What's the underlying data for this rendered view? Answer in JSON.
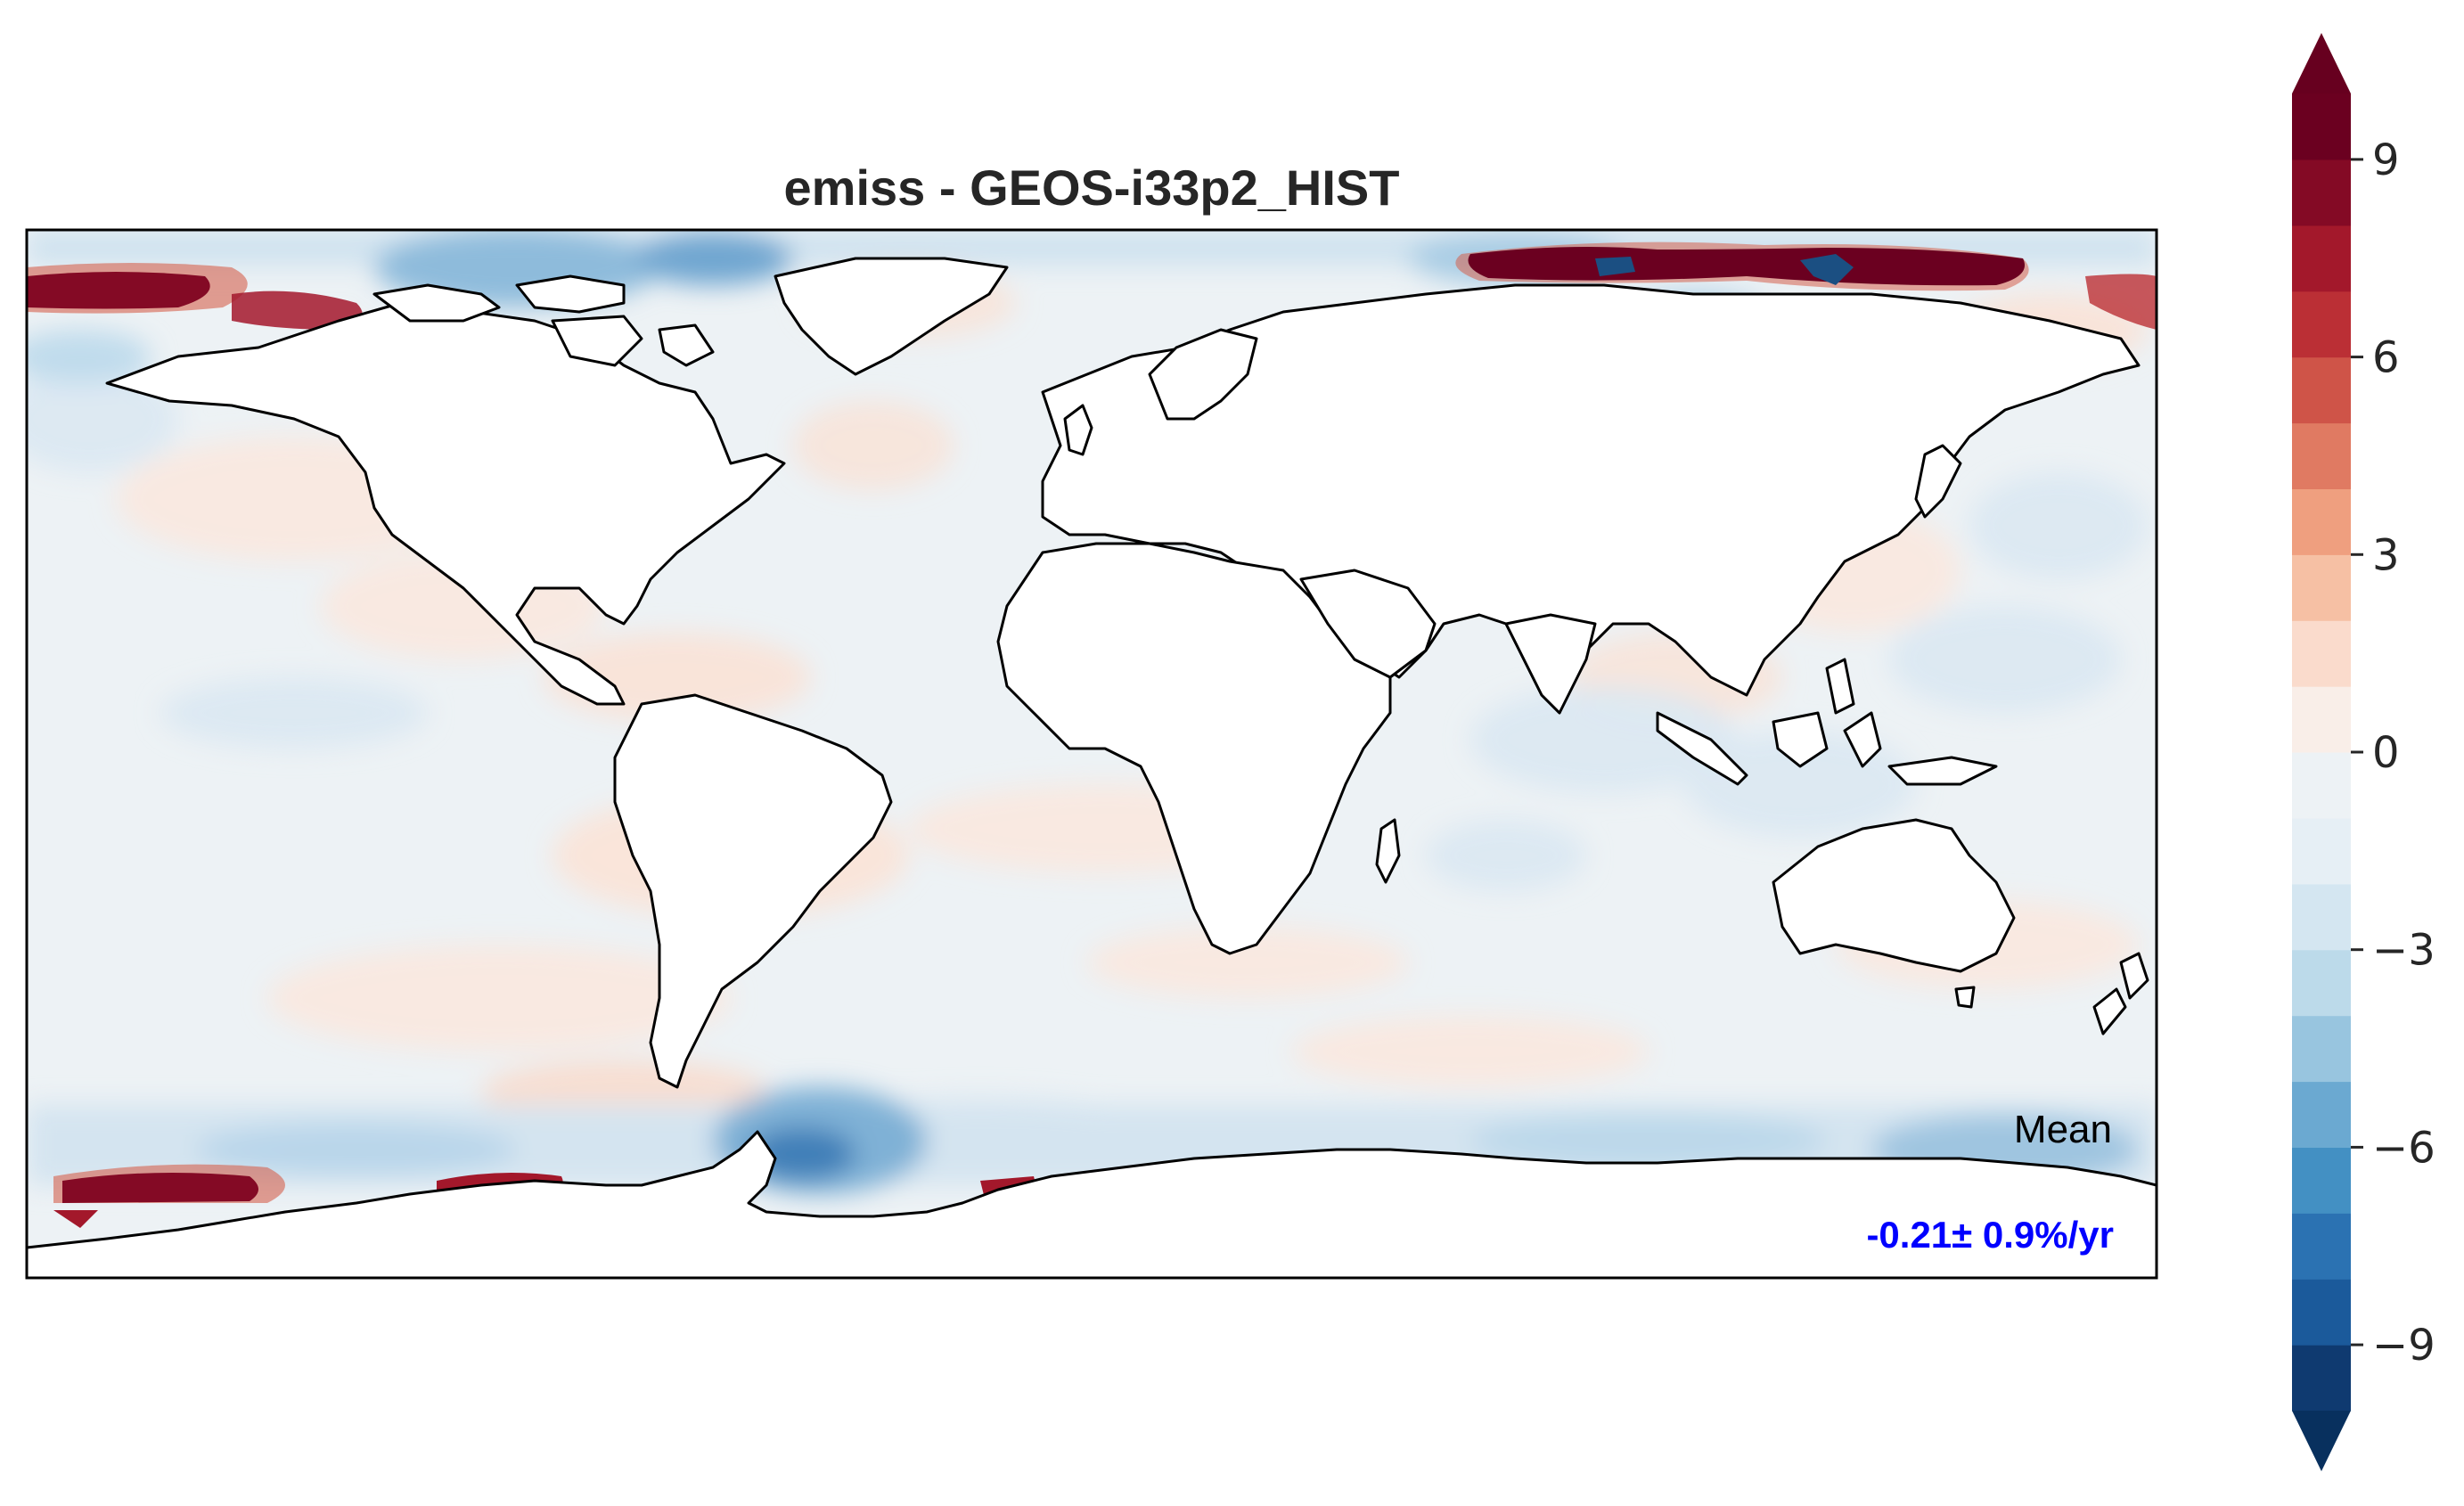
{
  "title": "emiss - GEOS-i33p2_HIST",
  "annotation": {
    "label": "Mean",
    "value": "-0.21± 0.9%/yr",
    "value_color": "#0000ff"
  },
  "map": {
    "projection": "PlateCarree",
    "background_color": "#edf2f5",
    "land_color": "#ffffff",
    "coastline_color": "#000000"
  },
  "colorbar": {
    "colormap": "RdBu_r",
    "extend": "both",
    "levels": [
      -10,
      -9,
      -8,
      -7,
      -6,
      -5,
      -4,
      -3,
      -2,
      -1,
      0,
      1,
      2,
      3,
      4,
      5,
      6,
      7,
      8,
      9,
      10
    ],
    "colors": [
      "#0f3a70",
      "#1b5a9b",
      "#2b72b2",
      "#4390c3",
      "#6ba9d1",
      "#98c5df",
      "#bcdaea",
      "#d4e6f1",
      "#e6eff5",
      "#edf2f5",
      "#f9eee8",
      "#fadbcc",
      "#f6c0a4",
      "#ef9f7f",
      "#e07a62",
      "#cf5448",
      "#bb2f35",
      "#a3182b",
      "#840a25",
      "#6b0020"
    ],
    "under_color": "#08305e",
    "over_color": "#67001f",
    "ticks": [
      "9",
      "6",
      "3",
      "0",
      "−3",
      "−6",
      "−9"
    ],
    "tick_values": [
      9,
      6,
      3,
      0,
      -3,
      -6,
      -9
    ]
  }
}
